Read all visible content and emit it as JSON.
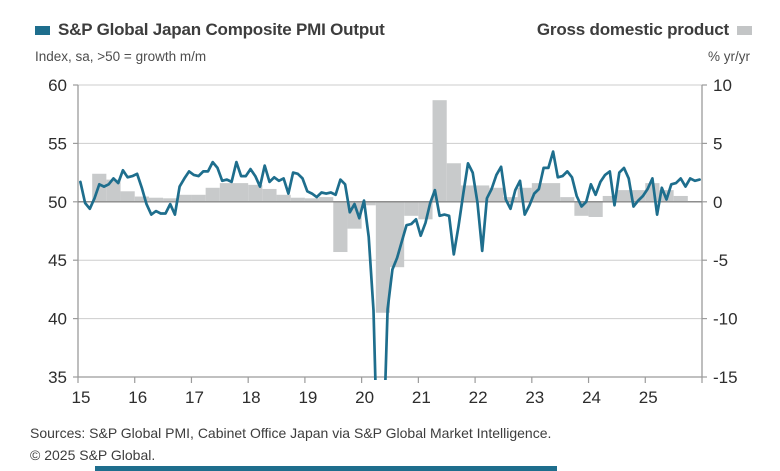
{
  "header": {
    "legend_left": "S&P Global Japan Composite PMI Output",
    "legend_right": "Gross domestic product",
    "subtitle_left": "Index, sa, >50 = growth m/m",
    "subtitle_right": "% yr/yr"
  },
  "footer": {
    "sources": "Sources: S&P Global PMI, Cabinet Office Japan via S&P Global Market Intelligence.",
    "copyright": "© 2025 S&P Global."
  },
  "colors": {
    "line": "#1e6e8d",
    "bar": "#c8cacb",
    "grid": "#cdcdcd",
    "zero_line": "#8a8a8a",
    "axis": "#9b9b9b",
    "tick_label": "#2d2d2d"
  },
  "chart_data": {
    "type": "combo",
    "title": "S&P Global Japan Composite PMI Output vs Gross domestic product",
    "x_range": [
      "2015-01",
      "2025-12"
    ],
    "x_tick_labels": [
      "15",
      "16",
      "17",
      "18",
      "19",
      "20",
      "21",
      "22",
      "23",
      "24",
      "25"
    ],
    "left_axis": {
      "label": "Index, sa, >50 = growth m/m",
      "min": 35,
      "max": 60,
      "step": 5
    },
    "right_axis": {
      "label": "% yr/yr",
      "min": -15,
      "max": 10,
      "step": 5
    },
    "grid": true,
    "legend_position": "top",
    "series": [
      {
        "name": "S&P Global Japan Composite PMI Output",
        "type": "line",
        "axis": "left",
        "freq": "monthly",
        "start": "2015-01",
        "values": [
          51.7,
          49.9,
          49.4,
          50.3,
          51.5,
          51.3,
          51.5,
          52.0,
          51.6,
          52.7,
          52.1,
          52.2,
          52.4,
          51.2,
          49.8,
          48.9,
          49.2,
          49.0,
          49.0,
          49.8,
          48.9,
          51.3,
          52.0,
          52.6,
          52.3,
          52.2,
          52.6,
          52.6,
          53.4,
          52.9,
          51.8,
          51.9,
          51.7,
          53.4,
          52.2,
          52.2,
          52.8,
          52.2,
          51.3,
          53.1,
          51.7,
          52.1,
          51.8,
          52.0,
          50.7,
          52.5,
          52.4,
          52.0,
          50.9,
          50.7,
          50.4,
          50.8,
          50.7,
          50.8,
          50.6,
          51.9,
          51.5,
          49.1,
          49.8,
          48.6,
          50.1,
          47.0,
          40.7,
          25.8,
          27.8,
          40.8,
          44.2,
          45.2,
          46.6,
          48.0,
          48.1,
          48.5,
          47.1,
          48.2,
          49.9,
          51.0,
          48.8,
          48.9,
          48.8,
          45.5,
          47.9,
          50.7,
          53.3,
          52.5,
          49.9,
          45.8,
          50.3,
          51.1,
          52.3,
          53.0,
          50.2,
          49.4,
          51.0,
          51.8,
          48.9,
          49.7,
          50.7,
          51.1,
          52.9,
          52.9,
          54.3,
          52.1,
          52.2,
          52.6,
          52.1,
          50.5,
          49.6,
          50.0,
          51.5,
          50.6,
          51.7,
          52.3,
          52.6,
          49.7,
          52.5,
          52.9,
          52.0,
          49.6,
          50.1,
          50.5,
          51.1,
          52.0,
          48.9,
          51.2,
          50.2,
          51.5,
          51.6,
          52.0,
          51.3,
          52.0,
          51.8,
          51.9
        ]
      },
      {
        "name": "Gross domestic product",
        "type": "bar",
        "axis": "right",
        "freq": "quarterly",
        "start": "2015-Q1",
        "values": [
          0.0,
          2.4,
          1.9,
          0.9,
          0.45,
          0.35,
          0.3,
          0.6,
          0.6,
          1.2,
          1.6,
          1.6,
          1.45,
          1.1,
          0.6,
          0.35,
          0.3,
          0.4,
          -4.3,
          -2.3,
          -0.3,
          -9.5,
          -5.6,
          -1.2,
          -1.5,
          8.7,
          3.3,
          1.4,
          1.4,
          1.2,
          0.4,
          1.2,
          1.6,
          1.6,
          0.4,
          -1.2,
          -1.3,
          0.5,
          1.0,
          1.0,
          1.6,
          1.0,
          0.5
        ]
      }
    ]
  }
}
